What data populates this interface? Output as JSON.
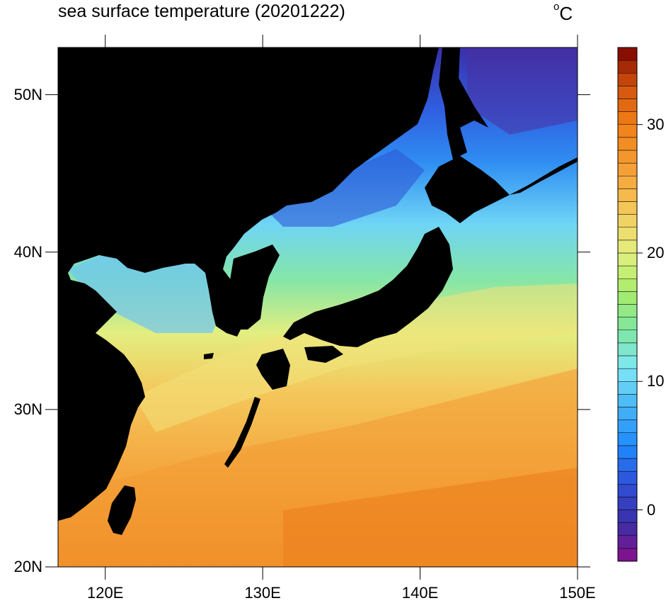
{
  "title": "sea surface temperature (20201222)",
  "units": {
    "degree_symbol": "o",
    "letter": "C"
  },
  "map": {
    "projection": "cylindrical-equidistant",
    "lon_range": [
      117,
      150
    ],
    "lat_range": [
      20,
      53
    ],
    "land_color": "#000000",
    "lat_ticks": [
      {
        "value": 20,
        "label": "20N"
      },
      {
        "value": 30,
        "label": "30N"
      },
      {
        "value": 40,
        "label": "40N"
      },
      {
        "value": 50,
        "label": "50N"
      }
    ],
    "lon_ticks": [
      {
        "value": 120,
        "label": "120E"
      },
      {
        "value": 130,
        "label": "130E"
      },
      {
        "value": 140,
        "label": "140E"
      },
      {
        "value": 150,
        "label": "150E"
      }
    ]
  },
  "colorbar": {
    "range": [
      -4,
      36
    ],
    "interval": 1,
    "labels": [
      {
        "value": 0,
        "label": "0"
      },
      {
        "value": 10,
        "label": "10"
      },
      {
        "value": 20,
        "label": "20"
      },
      {
        "value": 30,
        "label": "30"
      }
    ],
    "color_stops": [
      {
        "value": -4,
        "color": "#8a0f8a"
      },
      {
        "value": -1,
        "color": "#3b2fa8"
      },
      {
        "value": 2,
        "color": "#2f4fd6"
      },
      {
        "value": 5,
        "color": "#1e8bff"
      },
      {
        "value": 8,
        "color": "#45b4f5"
      },
      {
        "value": 11,
        "color": "#7ee8f7"
      },
      {
        "value": 14,
        "color": "#7ee6a0"
      },
      {
        "value": 17,
        "color": "#a8ec6a"
      },
      {
        "value": 20,
        "color": "#e3f07f"
      },
      {
        "value": 23,
        "color": "#f4cc5e"
      },
      {
        "value": 26,
        "color": "#f5a53a"
      },
      {
        "value": 30,
        "color": "#f07f17"
      },
      {
        "value": 33,
        "color": "#d2530c"
      },
      {
        "value": 36,
        "color": "#7a0000"
      }
    ]
  }
}
